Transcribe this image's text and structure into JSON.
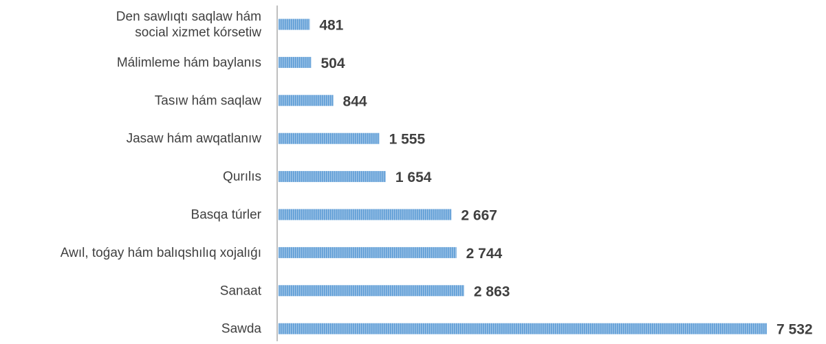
{
  "chart_data": {
    "type": "bar",
    "orientation": "horizontal",
    "categories": [
      [
        "Den sawlıqtı saqlaw hám",
        "social xizmet kórsetiw"
      ],
      [
        "Málimleme hám baylanıs"
      ],
      [
        "Tasıw hám saqlaw"
      ],
      [
        "Jasaw hám awqatlanıw"
      ],
      [
        "Qurılıs"
      ],
      [
        "Basqa túrler"
      ],
      [
        "Awıl, toǵay hám balıqshılıq xojalıǵı"
      ],
      [
        "Sanaat"
      ],
      [
        "Sawda"
      ]
    ],
    "values": [
      481,
      504,
      844,
      1555,
      1654,
      2667,
      2744,
      2863,
      7532
    ],
    "value_labels": [
      "481",
      "504",
      "844",
      "1 555",
      "1 654",
      "2 667",
      "2 744",
      "2 863",
      "7 532"
    ],
    "title": "",
    "xlabel": "",
    "ylabel": "",
    "xlim": [
      0,
      7532
    ],
    "grid": false,
    "legend": "none",
    "colors": {
      "bar_fill": "#9dc3e6",
      "bar_stripe": "#5b9bd5",
      "axis": "#bfbfbf",
      "text": "#404040"
    }
  }
}
